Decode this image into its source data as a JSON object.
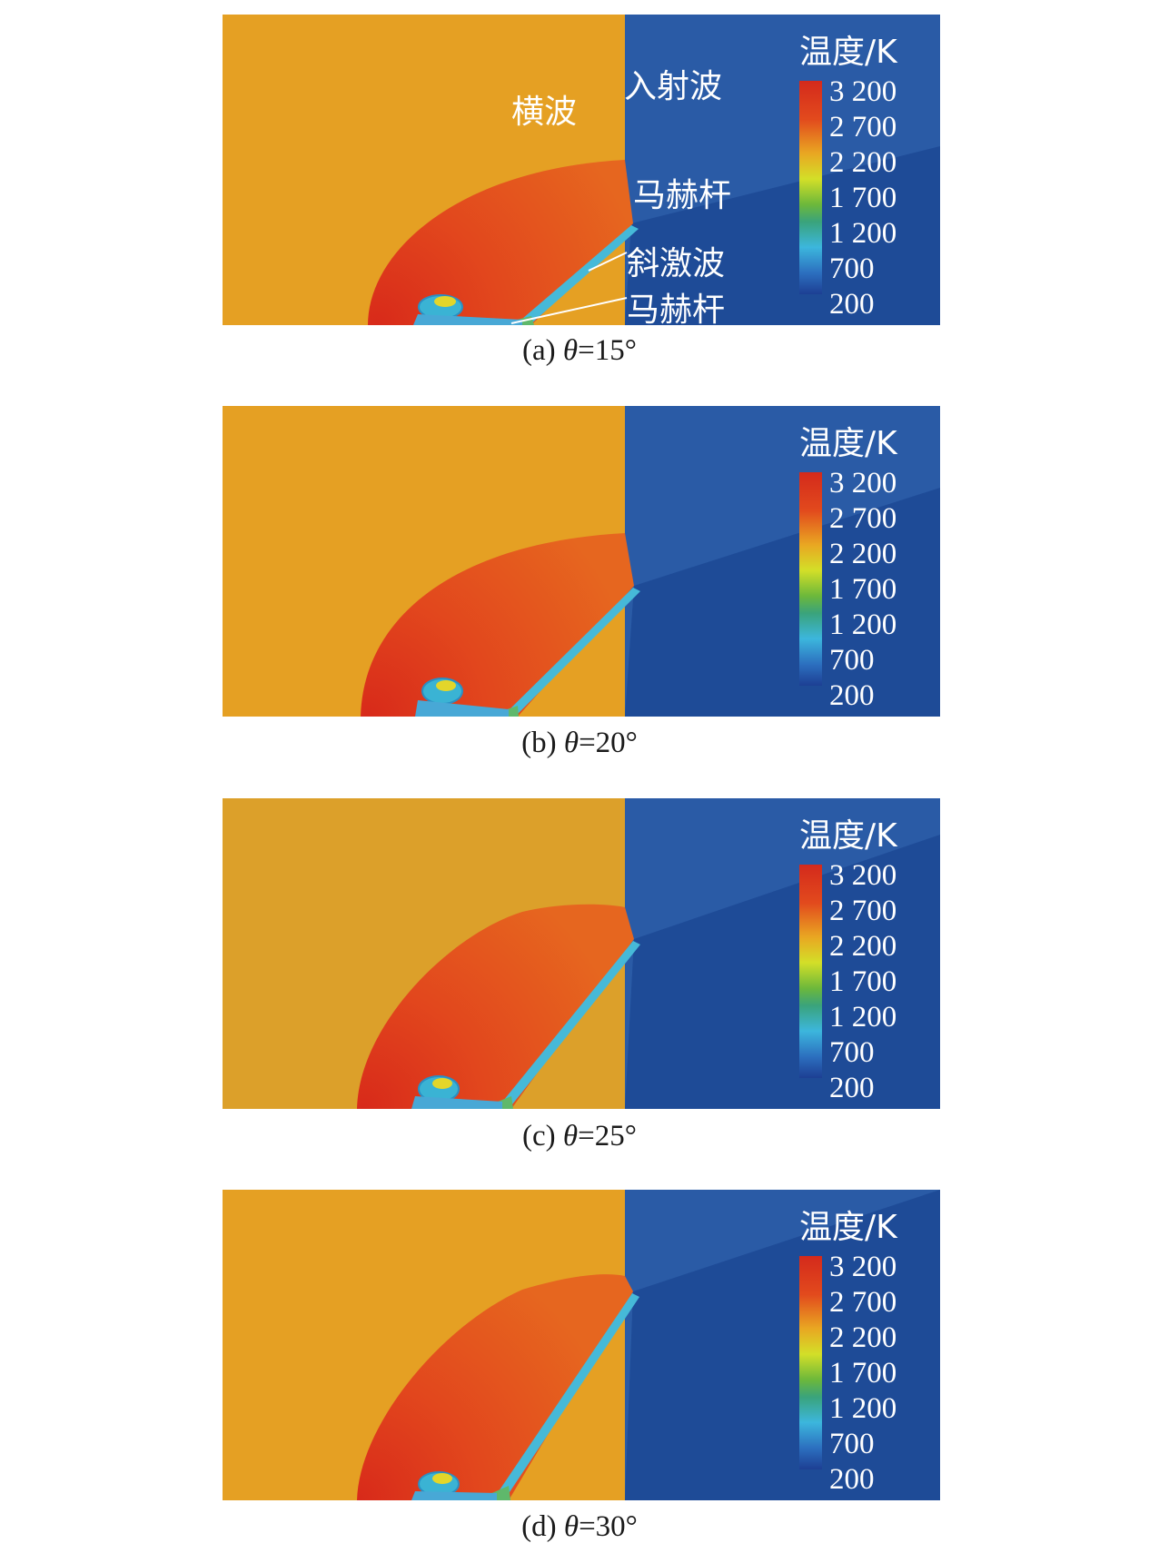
{
  "legend": {
    "title": "温度/K",
    "ticks": [
      "3 200",
      "2 700",
      "2 200",
      "1 700",
      "1 200",
      "700",
      "200"
    ]
  },
  "annotations": {
    "transverse_wave": "横波",
    "incident_wave": "入射波",
    "mach_stem_upper": "马赫杆",
    "oblique_shock": "斜激波",
    "mach_stem_lower": "马赫杆"
  },
  "panels": [
    {
      "prefix": "(a) ",
      "symbol": "θ",
      "value": "=15°"
    },
    {
      "prefix": "(b) ",
      "symbol": "θ",
      "value": "=20°"
    },
    {
      "prefix": "(c) ",
      "symbol": "θ",
      "value": "=25°"
    },
    {
      "prefix": "(d) ",
      "symbol": "θ",
      "value": "=30°"
    }
  ],
  "colors": {
    "burned_gas": "#E5A023",
    "unburned_gas": "#1E4B97",
    "unburned_upper": "#2A5BA6",
    "hot_region": "#E0401E"
  }
}
